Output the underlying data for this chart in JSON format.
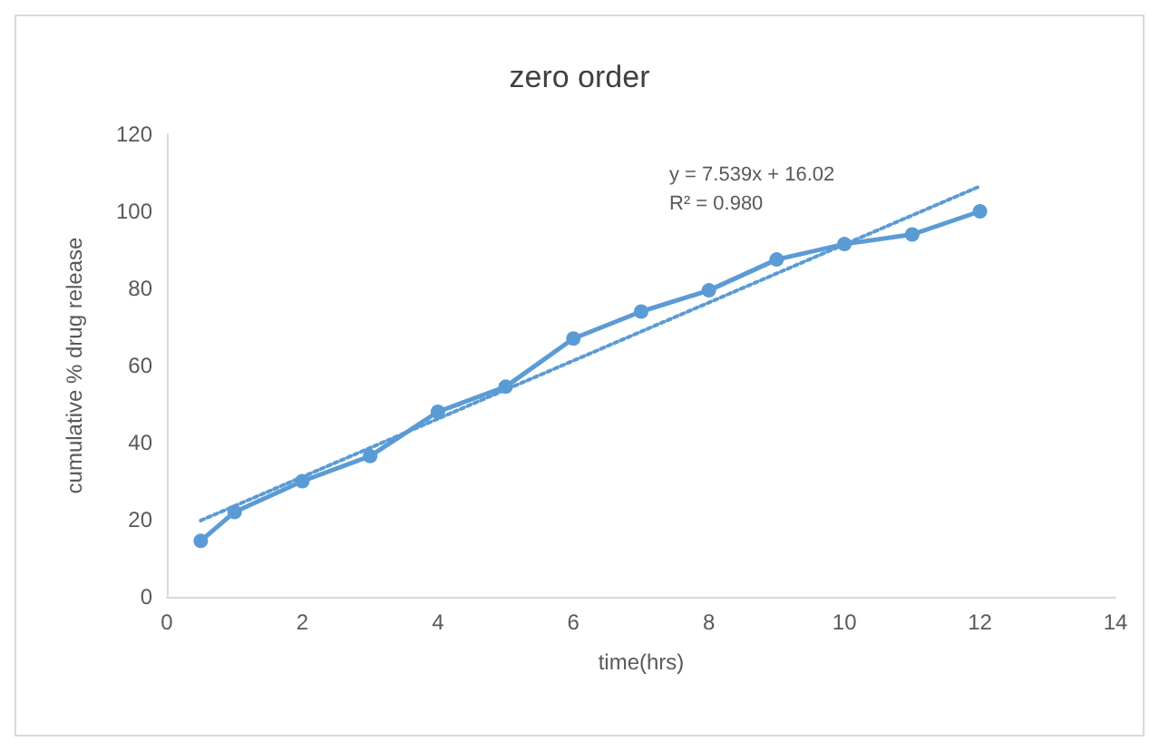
{
  "chart_data": {
    "type": "line",
    "title": "zero order",
    "xlabel": "time(hrs)",
    "ylabel": "cumulative % drug release",
    "x": [
      0.5,
      1,
      2,
      3,
      4,
      5,
      6,
      7,
      8,
      9,
      10,
      11,
      12
    ],
    "series": [
      {
        "color": "#5b9bd5",
        "marker": "circle",
        "line_style": "solid",
        "values": [
          14.5,
          22,
          30,
          36.5,
          48,
          54.5,
          67,
          74,
          79.5,
          87.5,
          91.5,
          94,
          100
        ]
      },
      {
        "type": "line",
        "color": "#5b9bd5",
        "marker": "none",
        "line_style": "dotted",
        "x": [
          0.5,
          12
        ],
        "values": [
          19.8,
          106.5
        ]
      }
    ],
    "xlim": [
      0,
      14
    ],
    "xticks": [
      0,
      2,
      4,
      6,
      8,
      10,
      12,
      14
    ],
    "ylim": [
      0,
      120
    ],
    "yticks": [
      0,
      20,
      40,
      60,
      80,
      100,
      120
    ],
    "grid": false,
    "annotations": [
      "y = 7.539x + 16.02",
      "R² = 0.980"
    ]
  }
}
